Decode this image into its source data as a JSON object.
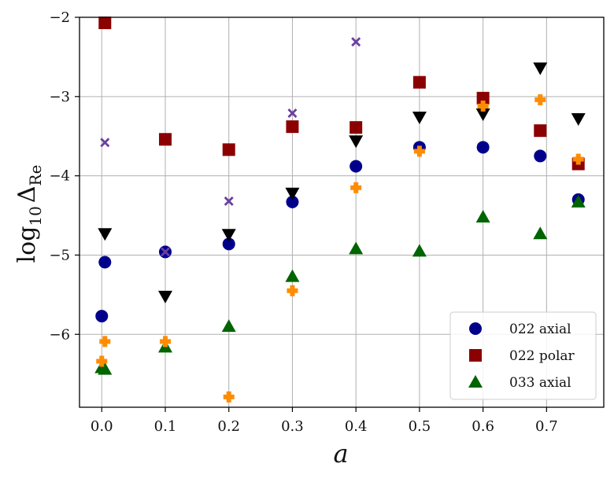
{
  "chart_data": {
    "type": "scatter",
    "title": "",
    "xlabel": "a",
    "ylabel_main": "log",
    "ylabel_sub": "10",
    "ylabel_delta": "Δ",
    "ylabel_delta_sub": "Re",
    "xlim": [
      -0.035,
      0.79
    ],
    "ylim": [
      -6.92,
      -2.0
    ],
    "xticks": [
      0.0,
      0.1,
      0.2,
      0.3,
      0.4,
      0.5,
      0.6,
      0.7
    ],
    "xtick_labels": [
      "0.0",
      "0.1",
      "0.2",
      "0.3",
      "0.4",
      "0.5",
      "0.6",
      "0.7"
    ],
    "yticks": [
      -2,
      -3,
      -4,
      -5,
      -6
    ],
    "ytick_labels": [
      "−2",
      "−3",
      "−4",
      "−5",
      "−6"
    ],
    "grid": true,
    "legend_position": "bottom-right",
    "series": [
      {
        "name": "022 axial",
        "marker": "circle",
        "color": "#00008b",
        "in_legend": true,
        "x": [
          0.0,
          0.005,
          0.1,
          0.2,
          0.3,
          0.4,
          0.5,
          0.6,
          0.69,
          0.75
        ],
        "y": [
          -5.77,
          -5.09,
          -4.96,
          -4.86,
          -4.33,
          -3.88,
          -3.64,
          -3.64,
          -3.75,
          -4.3
        ]
      },
      {
        "name": "022 polar",
        "marker": "square",
        "color": "#8b0000",
        "in_legend": true,
        "x": [
          0.005,
          0.1,
          0.2,
          0.3,
          0.4,
          0.5,
          0.6,
          0.69,
          0.75
        ],
        "y": [
          -2.07,
          -3.54,
          -3.67,
          -3.38,
          -3.39,
          -2.82,
          -3.02,
          -3.43,
          -3.85
        ]
      },
      {
        "name": "033 axial",
        "marker": "triangle-up",
        "color": "#006400",
        "in_legend": true,
        "x": [
          0.0,
          0.005,
          0.1,
          0.2,
          0.3,
          0.4,
          0.5,
          0.6,
          0.69,
          0.75
        ],
        "y": [
          -6.42,
          -6.44,
          -6.16,
          -5.9,
          -5.27,
          -4.92,
          -4.95,
          -4.52,
          -4.73,
          -4.33
        ]
      },
      {
        "name": "",
        "marker": "triangle-down",
        "color": "#000000",
        "in_legend": false,
        "x": [
          0.005,
          0.1,
          0.2,
          0.3,
          0.4,
          0.5,
          0.6,
          0.69,
          0.75
        ],
        "y": [
          -4.73,
          -5.52,
          -4.74,
          -4.22,
          -3.56,
          -3.26,
          -3.22,
          -2.64,
          -3.28
        ]
      },
      {
        "name": "",
        "marker": "plus",
        "color": "#ff8c00",
        "in_legend": false,
        "x": [
          0.0,
          0.005,
          0.1,
          0.2,
          0.3,
          0.4,
          0.5,
          0.6,
          0.69,
          0.75
        ],
        "y": [
          -6.34,
          -6.09,
          -6.09,
          -6.79,
          -5.45,
          -4.15,
          -3.69,
          -3.12,
          -3.04,
          -3.79
        ]
      },
      {
        "name": "",
        "marker": "x",
        "color": "#6b3fa0",
        "in_legend": false,
        "x": [
          0.005,
          0.1,
          0.2,
          0.3,
          0.4
        ],
        "y": [
          -3.58,
          -4.96,
          -4.32,
          -3.21,
          -2.31
        ]
      }
    ]
  }
}
